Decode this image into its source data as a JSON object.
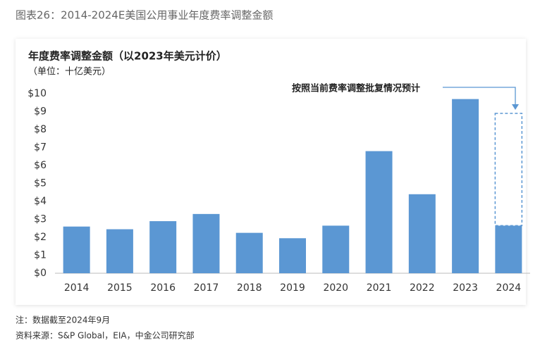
{
  "caption": "图表26：2014-2024E美国公用事业年度费率调整金额",
  "chart_data": {
    "type": "bar",
    "title": "年度费率调整金额（以2023年美元计价）",
    "subtitle": "（单位：十亿美元）",
    "categories": [
      "2014",
      "2015",
      "2016",
      "2017",
      "2018",
      "2019",
      "2020",
      "2021",
      "2022",
      "2023",
      "2024"
    ],
    "values": [
      2.6,
      2.45,
      2.9,
      3.3,
      2.25,
      1.95,
      2.65,
      6.8,
      4.4,
      9.7,
      2.65
    ],
    "color": "#5b97d3",
    "projected": {
      "label": "按照当前费率调整批复情况预计",
      "value": 8.9
    },
    "ylim": [
      0,
      10
    ],
    "yticks": [
      {
        "value": 0,
        "label": "$0"
      },
      {
        "value": 1,
        "label": "$1"
      },
      {
        "value": 2,
        "label": "$2"
      },
      {
        "value": 3,
        "label": "$3"
      },
      {
        "value": 4,
        "label": "$4"
      },
      {
        "value": 5,
        "label": "$5"
      },
      {
        "value": 6,
        "label": "$6"
      },
      {
        "value": 7,
        "label": "$7"
      },
      {
        "value": 8,
        "label": "$8"
      },
      {
        "value": 9,
        "label": "$9"
      },
      {
        "value": 10,
        "label": "$10"
      }
    ],
    "grid": false
  },
  "notes": [
    "注：数据截至2024年9月",
    "资料来源：S&P Global，EIA，中金公司研究部"
  ]
}
